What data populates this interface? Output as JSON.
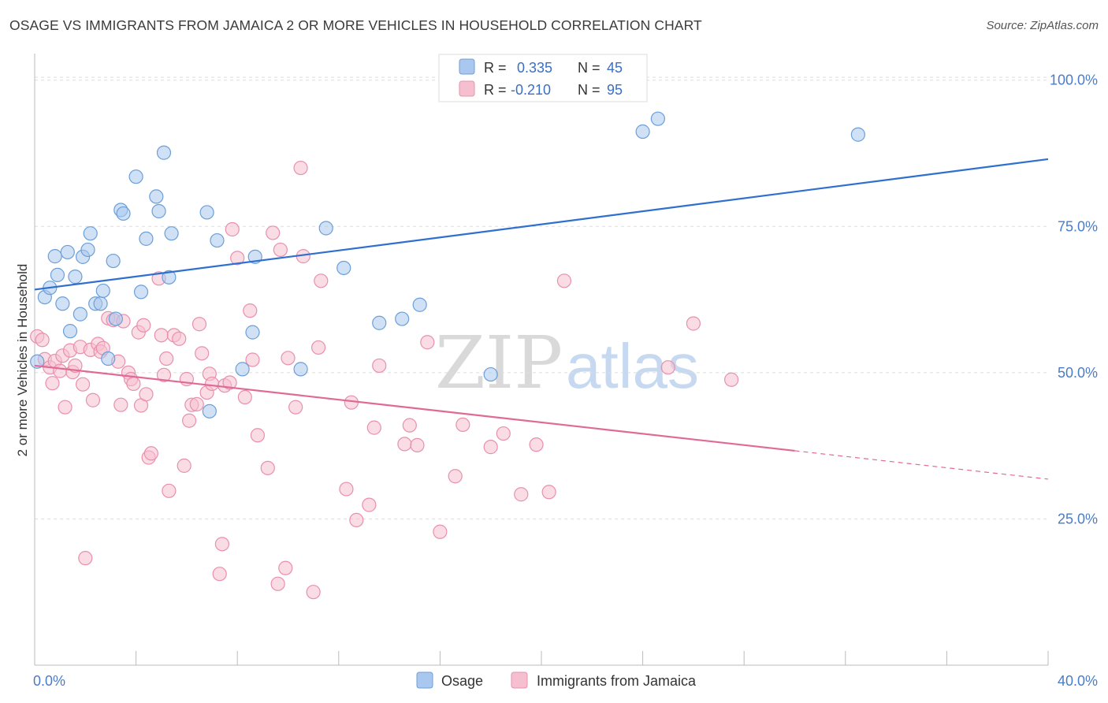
{
  "header": {
    "title": "OSAGE VS IMMIGRANTS FROM JAMAICA 2 OR MORE VEHICLES IN HOUSEHOLD CORRELATION CHART",
    "source": "Source: ZipAtlas.com"
  },
  "watermark": {
    "zip": "ZIP",
    "atlas": "atlas"
  },
  "colors": {
    "blue_fill": "#aac8ef",
    "blue_stroke": "#6b9fd8",
    "blue_line": "#2e6fcf",
    "pink_fill": "#f6bfd0",
    "pink_stroke": "#e890ad",
    "pink_line": "#e06a96",
    "tick_text": "#4a7cc7",
    "grid": "#dddddd"
  },
  "legend": {
    "rows": [
      {
        "r_label": "R =",
        "r_value": "0.335",
        "n_label": "N =",
        "n_value": "45"
      },
      {
        "r_label": "R =",
        "r_value": "-0.210",
        "n_label": "N =",
        "n_value": "95"
      }
    ]
  },
  "chart_data": {
    "type": "scatter",
    "title": "OSAGE VS IMMIGRANTS FROM JAMAICA 2 OR MORE VEHICLES IN HOUSEHOLD CORRELATION CHART",
    "xlabel": "",
    "ylabel": "2 or more Vehicles in Household",
    "xlim": [
      0,
      40
    ],
    "ylim": [
      0,
      104
    ],
    "x_tick_labels": [
      "0.0%",
      "40.0%"
    ],
    "y_ticks": [
      25,
      50,
      75,
      100
    ],
    "y_tick_labels": [
      "25.0%",
      "50.0%",
      "75.0%",
      "100.0%"
    ],
    "grid": true,
    "legend_position": "top-center",
    "series": [
      {
        "name": "Osage",
        "color": "#aac8ef",
        "trend": {
          "x": [
            0,
            40
          ],
          "y": [
            64.2,
            86.5
          ],
          "dashed_from": null
        },
        "points": [
          [
            0.1,
            51.9
          ],
          [
            0.4,
            62.9
          ],
          [
            0.6,
            64.5
          ],
          [
            0.8,
            69.9
          ],
          [
            0.9,
            66.7
          ],
          [
            1.1,
            61.8
          ],
          [
            1.3,
            70.6
          ],
          [
            1.4,
            57.1
          ],
          [
            1.6,
            66.4
          ],
          [
            1.8,
            60.0
          ],
          [
            1.9,
            69.8
          ],
          [
            2.1,
            71.0
          ],
          [
            2.2,
            73.8
          ],
          [
            2.4,
            61.8
          ],
          [
            2.6,
            61.8
          ],
          [
            2.7,
            64.0
          ],
          [
            2.9,
            52.4
          ],
          [
            3.1,
            69.1
          ],
          [
            3.2,
            59.2
          ],
          [
            3.4,
            77.8
          ],
          [
            3.5,
            77.2
          ],
          [
            4.0,
            83.5
          ],
          [
            4.2,
            63.8
          ],
          [
            4.4,
            72.9
          ],
          [
            4.8,
            80.1
          ],
          [
            4.9,
            77.6
          ],
          [
            5.1,
            87.6
          ],
          [
            5.3,
            66.3
          ],
          [
            5.4,
            73.8
          ],
          [
            6.8,
            77.4
          ],
          [
            7.2,
            72.6
          ],
          [
            8.2,
            50.6
          ],
          [
            8.6,
            56.9
          ],
          [
            8.7,
            69.8
          ],
          [
            10.5,
            50.6
          ],
          [
            11.5,
            74.7
          ],
          [
            12.2,
            67.9
          ],
          [
            13.6,
            58.5
          ],
          [
            14.5,
            59.2
          ],
          [
            15.2,
            61.6
          ],
          [
            18.0,
            49.7
          ],
          [
            24.0,
            91.2
          ],
          [
            24.6,
            93.4
          ],
          [
            32.5,
            90.7
          ],
          [
            6.9,
            43.4
          ]
        ]
      },
      {
        "name": "Immigrants from Jamaica",
        "color": "#f6bfd0",
        "trend": {
          "x": [
            0,
            40
          ],
          "y": [
            51.2,
            31.8
          ],
          "dashed_from": 30.0
        },
        "points": [
          [
            0.1,
            56.2
          ],
          [
            0.3,
            55.6
          ],
          [
            0.4,
            52.3
          ],
          [
            0.6,
            50.9
          ],
          [
            0.7,
            48.2
          ],
          [
            0.8,
            52.0
          ],
          [
            1.0,
            50.3
          ],
          [
            1.1,
            52.9
          ],
          [
            1.2,
            44.1
          ],
          [
            1.4,
            53.8
          ],
          [
            1.5,
            50.1
          ],
          [
            1.6,
            51.2
          ],
          [
            1.8,
            54.4
          ],
          [
            1.9,
            48.0
          ],
          [
            2.0,
            18.3
          ],
          [
            2.2,
            53.9
          ],
          [
            2.3,
            45.3
          ],
          [
            2.5,
            54.9
          ],
          [
            2.6,
            53.6
          ],
          [
            2.7,
            54.2
          ],
          [
            2.9,
            59.3
          ],
          [
            3.1,
            59.0
          ],
          [
            3.3,
            51.9
          ],
          [
            3.4,
            44.5
          ],
          [
            3.5,
            58.8
          ],
          [
            3.7,
            50.0
          ],
          [
            3.8,
            48.9
          ],
          [
            3.9,
            48.1
          ],
          [
            4.1,
            56.9
          ],
          [
            4.2,
            44.4
          ],
          [
            4.3,
            58.1
          ],
          [
            4.4,
            46.3
          ],
          [
            4.5,
            35.5
          ],
          [
            4.6,
            36.2
          ],
          [
            4.9,
            66.1
          ],
          [
            5.0,
            56.4
          ],
          [
            5.1,
            49.6
          ],
          [
            5.2,
            52.4
          ],
          [
            5.3,
            29.8
          ],
          [
            5.5,
            56.4
          ],
          [
            5.7,
            55.8
          ],
          [
            5.9,
            34.1
          ],
          [
            6.0,
            48.9
          ],
          [
            6.1,
            41.8
          ],
          [
            6.2,
            44.5
          ],
          [
            6.4,
            44.6
          ],
          [
            6.5,
            58.3
          ],
          [
            6.6,
            53.3
          ],
          [
            6.8,
            46.6
          ],
          [
            6.9,
            49.8
          ],
          [
            7.0,
            48.1
          ],
          [
            7.3,
            15.6
          ],
          [
            7.4,
            20.7
          ],
          [
            7.5,
            47.8
          ],
          [
            7.7,
            48.3
          ],
          [
            7.8,
            74.5
          ],
          [
            8.0,
            69.6
          ],
          [
            8.3,
            45.8
          ],
          [
            8.5,
            60.6
          ],
          [
            8.6,
            52.2
          ],
          [
            8.8,
            39.3
          ],
          [
            9.2,
            33.7
          ],
          [
            9.4,
            73.9
          ],
          [
            9.6,
            13.9
          ],
          [
            9.7,
            71.0
          ],
          [
            9.9,
            16.6
          ],
          [
            10.0,
            52.5
          ],
          [
            10.3,
            44.1
          ],
          [
            10.5,
            85.0
          ],
          [
            10.6,
            69.9
          ],
          [
            11.0,
            12.5
          ],
          [
            11.2,
            54.3
          ],
          [
            11.3,
            65.7
          ],
          [
            12.3,
            30.1
          ],
          [
            12.5,
            44.9
          ],
          [
            12.7,
            24.8
          ],
          [
            13.2,
            27.4
          ],
          [
            13.4,
            40.6
          ],
          [
            13.6,
            51.2
          ],
          [
            14.6,
            37.8
          ],
          [
            14.8,
            41.0
          ],
          [
            15.1,
            37.6
          ],
          [
            15.5,
            55.2
          ],
          [
            16.0,
            22.8
          ],
          [
            16.6,
            32.3
          ],
          [
            16.9,
            41.1
          ],
          [
            18.0,
            37.3
          ],
          [
            18.5,
            39.6
          ],
          [
            19.2,
            29.2
          ],
          [
            19.8,
            37.7
          ],
          [
            20.3,
            29.6
          ],
          [
            20.9,
            65.7
          ],
          [
            25.0,
            50.9
          ],
          [
            26.0,
            58.4
          ],
          [
            27.5,
            48.8
          ]
        ]
      }
    ]
  }
}
